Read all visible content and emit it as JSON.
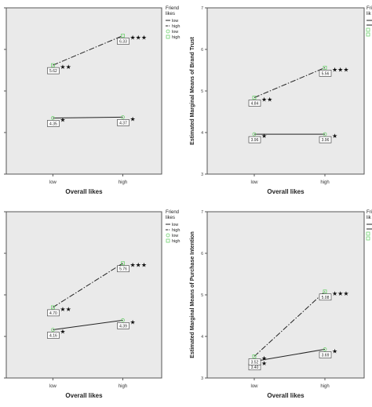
{
  "colors": {
    "plot_bg": "#eaeaea",
    "marker": "#6fd16f",
    "line": "#222222",
    "frame": "#555555"
  },
  "chart_data": [
    {
      "type": "line",
      "xlabel": "Overall likes",
      "ylabel": "",
      "categories": [
        "low",
        "high"
      ],
      "ylim": [
        3,
        7
      ],
      "yticks": [
        "3",
        "4",
        "5",
        "6",
        "7"
      ],
      "show_ytick_labels": false,
      "legend": {
        "title": "Friend likes",
        "entries": [
          "low",
          "high",
          "low",
          "high"
        ],
        "placement": "top-right"
      },
      "series": [
        {
          "name": "low",
          "style": "solid",
          "values": [
            4.35,
            4.37
          ],
          "value_labels": [
            "4.35",
            "4.37"
          ],
          "stars": [
            "★",
            "★"
          ]
        },
        {
          "name": "high",
          "style": "dashdot",
          "values": [
            5.62,
            6.33
          ],
          "value_labels": [
            "5.62",
            "6.33"
          ],
          "stars": [
            "★★",
            "★★★"
          ]
        }
      ]
    },
    {
      "type": "line",
      "xlabel": "Overall likes",
      "ylabel": "Estimated Marginal Means of Brand Trust",
      "categories": [
        "low",
        "high"
      ],
      "ylim": [
        3,
        7
      ],
      "yticks": [
        "3",
        "4",
        "5",
        "6",
        "7"
      ],
      "show_ytick_labels": true,
      "legend": {
        "title": "Fri lik",
        "entries": [
          "",
          "",
          "",
          ""
        ],
        "placement": "top-right-clipped"
      },
      "series": [
        {
          "name": "low",
          "style": "solid",
          "values": [
            3.96,
            3.96
          ],
          "value_labels": [
            "3.96",
            "3.96"
          ],
          "stars": [
            "★",
            "★"
          ]
        },
        {
          "name": "high",
          "style": "dashdot",
          "values": [
            4.84,
            5.56
          ],
          "value_labels": [
            "4.84",
            "5.56"
          ],
          "stars": [
            "★★",
            "★★★"
          ]
        }
      ]
    },
    {
      "type": "line",
      "xlabel": "Overall likes",
      "ylabel": "",
      "categories": [
        "low",
        "high"
      ],
      "ylim": [
        3,
        7
      ],
      "yticks": [
        "3",
        "4",
        "5",
        "6",
        "7"
      ],
      "show_ytick_labels": false,
      "legend": {
        "title": "Friend likes",
        "entries": [
          "low",
          "high",
          "low",
          "high"
        ],
        "placement": "top-right"
      },
      "series": [
        {
          "name": "low",
          "style": "solid",
          "values": [
            4.16,
            4.39
          ],
          "value_labels": [
            "4.16",
            "4.39"
          ],
          "stars": [
            "★",
            "★"
          ]
        },
        {
          "name": "high",
          "style": "dashdot",
          "values": [
            4.7,
            5.76
          ],
          "value_labels": [
            "4.70",
            "5.76"
          ],
          "stars": [
            "★★",
            "★★★"
          ]
        }
      ]
    },
    {
      "type": "line",
      "xlabel": "Overall likes",
      "ylabel": "Estimated Marginal Means of Purchase Intention",
      "categories": [
        "low",
        "high"
      ],
      "ylim": [
        3,
        7
      ],
      "yticks": [
        "3",
        "4",
        "5",
        "6",
        "7"
      ],
      "show_ytick_labels": true,
      "legend": {
        "title": "Frie lik",
        "entries": [
          "",
          "",
          "",
          ""
        ],
        "placement": "top-right-clipped"
      },
      "series": [
        {
          "name": "low",
          "style": "solid",
          "values": [
            3.4,
            3.69
          ],
          "value_labels": [
            "3.40",
            "3.69"
          ],
          "stars": [
            "★",
            "★"
          ]
        },
        {
          "name": "high",
          "style": "dashdot",
          "values": [
            3.52,
            5.08
          ],
          "value_labels": [
            "3.52",
            "5.08"
          ],
          "stars": [
            "★",
            "★★★"
          ]
        }
      ]
    }
  ]
}
